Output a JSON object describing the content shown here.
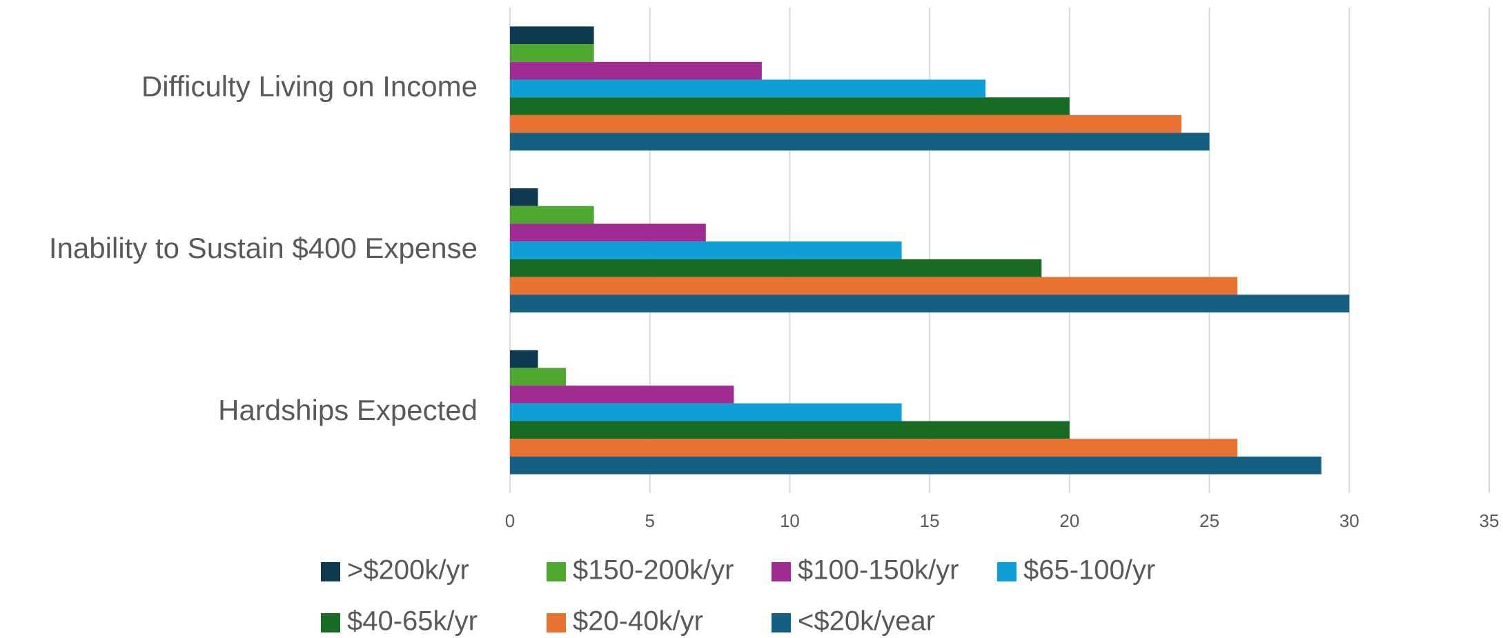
{
  "chart_data": {
    "type": "hbar",
    "categories": [
      "Difficulty Living on Income",
      "Inability to Sustain $400 Expense",
      "Hardships Expected"
    ],
    "series": [
      {
        "name": ">$200k/yr",
        "color": "#0e3a4f",
        "values": [
          3,
          1,
          1
        ]
      },
      {
        "name": "$150-200k/yr",
        "color": "#4ea72e",
        "values": [
          3,
          3,
          2
        ]
      },
      {
        "name": "$100-150k/yr",
        "color": "#a02b93",
        "values": [
          9,
          7,
          8
        ]
      },
      {
        "name": "$65-100/yr",
        "color": "#0f9ed5",
        "values": [
          17,
          14,
          14
        ]
      },
      {
        "name": "$40-65k/yr",
        "color": "#196b24",
        "values": [
          20,
          19,
          20
        ]
      },
      {
        "name": "$20-40k/yr",
        "color": "#e97132",
        "values": [
          24,
          26,
          26
        ]
      },
      {
        "name": "<$20k/year",
        "color": "#156082",
        "values": [
          25,
          30,
          29
        ]
      }
    ],
    "xlim": [
      0,
      35
    ],
    "xticks": [
      0,
      5,
      10,
      15,
      20,
      25,
      30,
      35
    ],
    "grid": true,
    "legend": "bottom"
  }
}
